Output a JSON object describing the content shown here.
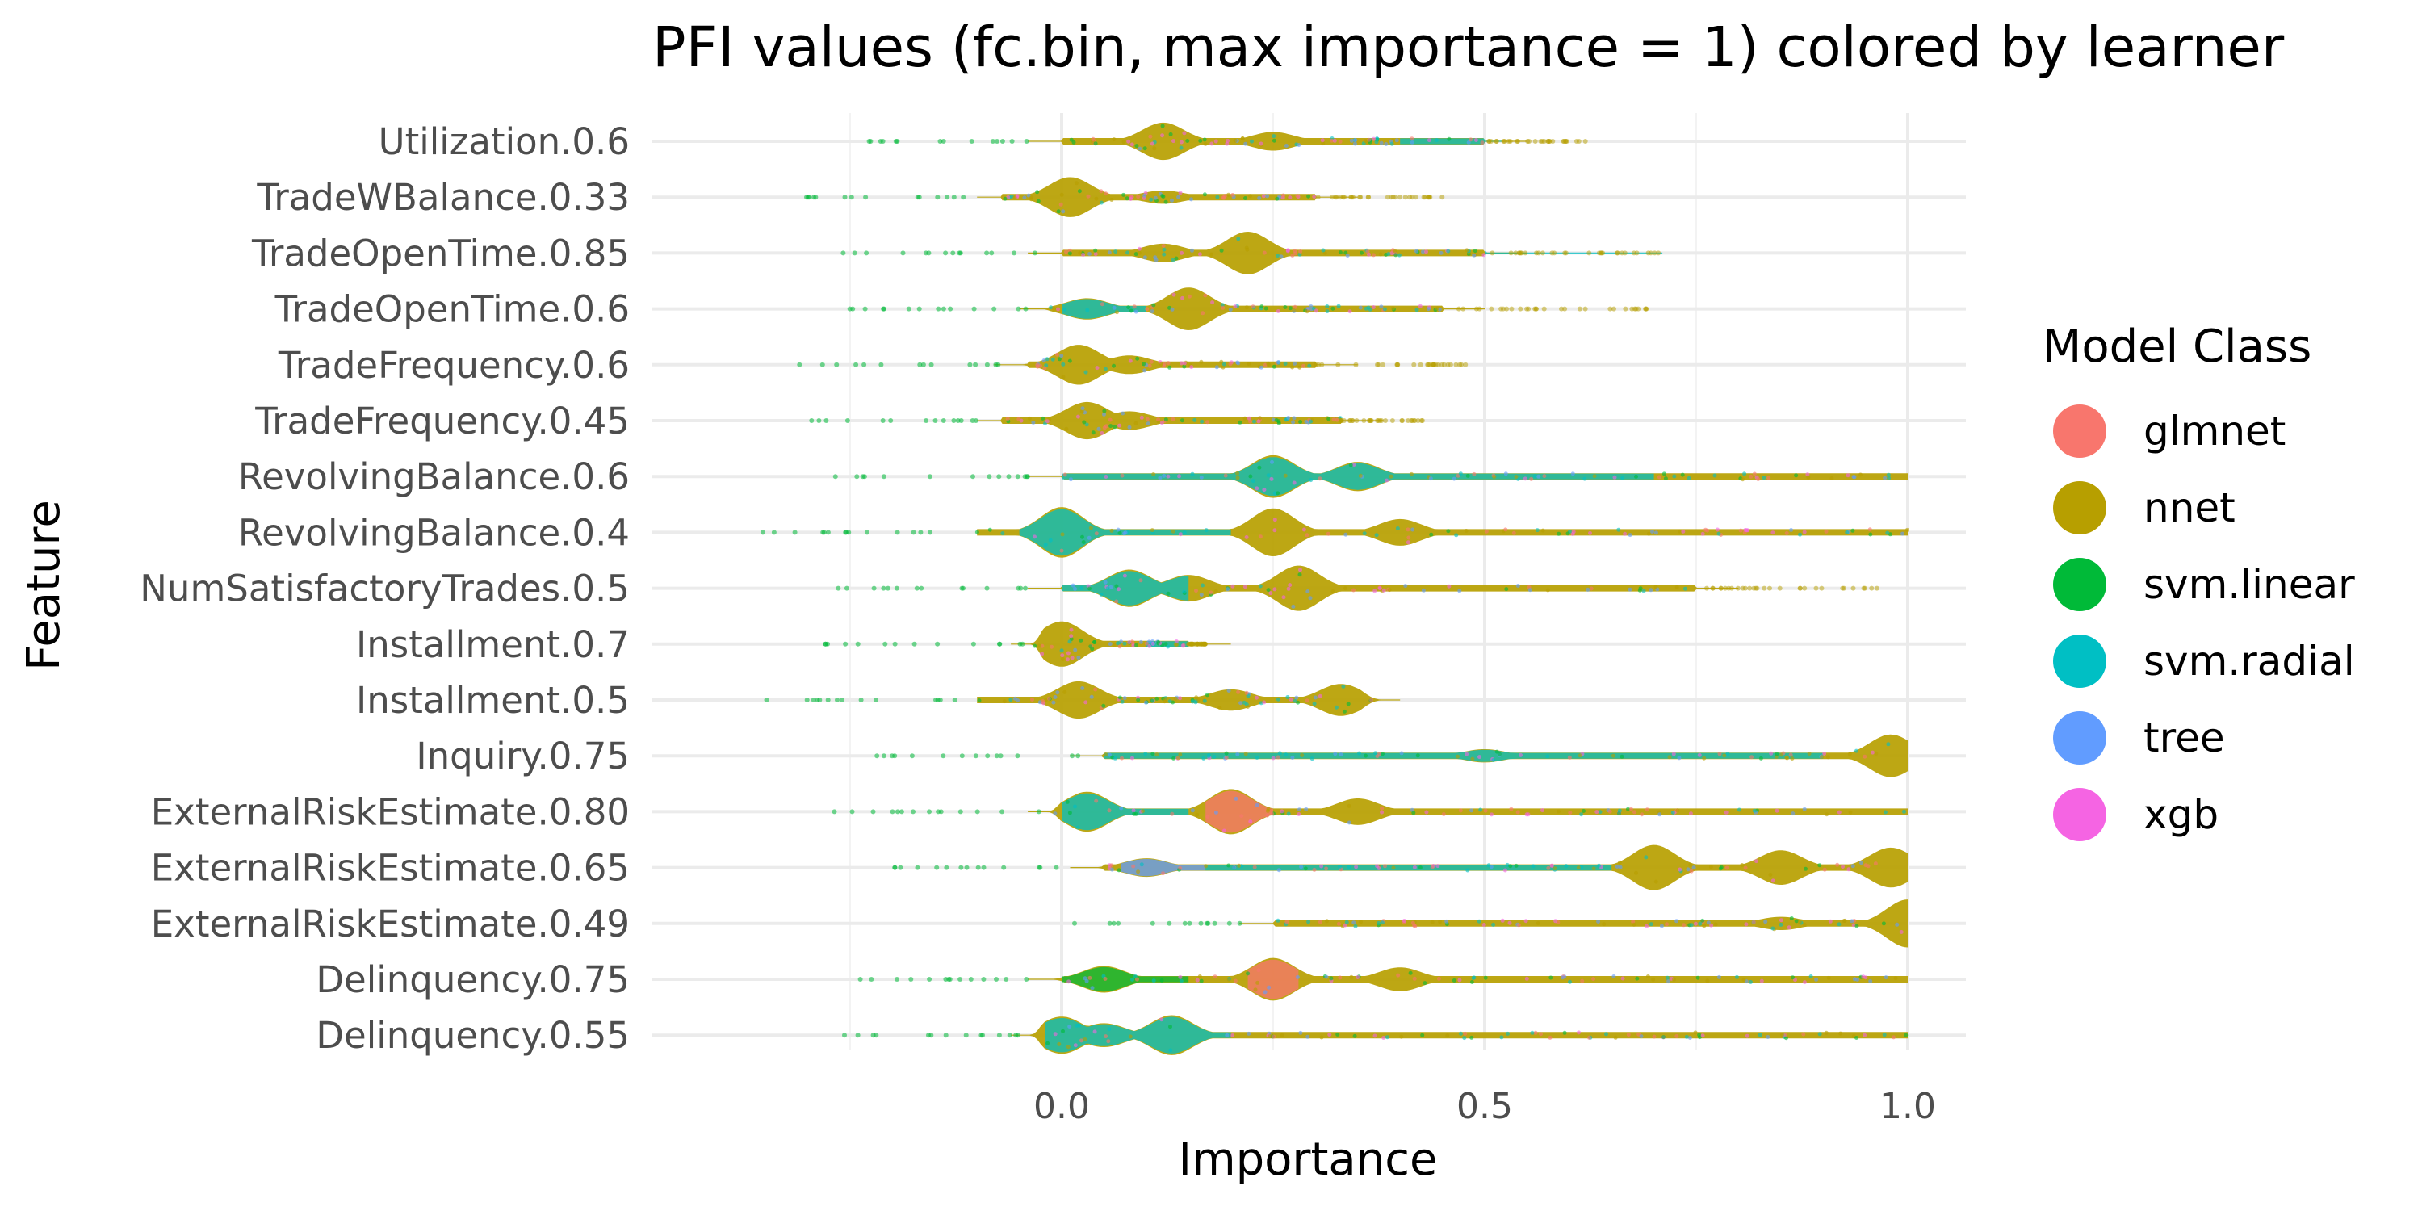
{
  "chart_data": {
    "type": "scatter",
    "title": "PFI values (fc.bin, max importance = 1) colored by learner",
    "xlabel": "Importance",
    "ylabel": "Feature",
    "xlim": [
      -0.5,
      1.07
    ],
    "x_ticks": [
      "0.0",
      "0.5",
      "1.0"
    ],
    "grid": true,
    "legend_position": "right",
    "legend_title": "Model Class",
    "series": [
      {
        "name": "glmnet",
        "color": "#F8766D"
      },
      {
        "name": "nnet",
        "color": "#B79F00"
      },
      {
        "name": "svm.linear",
        "color": "#00BA38"
      },
      {
        "name": "svm.radial",
        "color": "#00BFC4"
      },
      {
        "name": "tree",
        "color": "#619CFF"
      },
      {
        "name": "xgb",
        "color": "#F564E3"
      }
    ],
    "features": [
      {
        "label": "Utilization.0.6",
        "bumps": [
          {
            "x": 0.12,
            "h": 0.7
          },
          {
            "x": 0.25,
            "h": 0.35
          }
        ],
        "min": 0.0,
        "main_end": 0.5,
        "tail_end": 0.62,
        "overlays": [
          {
            "series": "svm.radial",
            "from": 0.4,
            "to": 0.52
          }
        ]
      },
      {
        "label": "TradeWBalance.0.33",
        "bumps": [
          {
            "x": 0.01,
            "h": 0.75
          },
          {
            "x": 0.12,
            "h": 0.25
          }
        ],
        "min": -0.07,
        "main_end": 0.3,
        "tail_end": 0.45
      },
      {
        "label": "TradeOpenTime.0.85",
        "bumps": [
          {
            "x": 0.22,
            "h": 0.8
          },
          {
            "x": 0.12,
            "h": 0.35
          }
        ],
        "min": 0.0,
        "main_end": 0.5,
        "tail_end": 0.71,
        "overlays": [
          {
            "series": "svm.radial",
            "from": 0.5,
            "to": 0.71
          }
        ]
      },
      {
        "label": "TradeOpenTime.0.6",
        "bumps": [
          {
            "x": 0.15,
            "h": 0.8
          },
          {
            "x": 0.03,
            "h": 0.4
          }
        ],
        "min": -0.01,
        "main_end": 0.45,
        "tail_end": 0.7,
        "overlays": [
          {
            "series": "svm.radial",
            "from": 0.0,
            "to": 0.1
          }
        ]
      },
      {
        "label": "TradeFrequency.0.6",
        "bumps": [
          {
            "x": 0.02,
            "h": 0.75
          },
          {
            "x": 0.08,
            "h": 0.35
          }
        ],
        "min": -0.04,
        "main_end": 0.3,
        "tail_end": 0.5
      },
      {
        "label": "TradeFrequency.0.45",
        "bumps": [
          {
            "x": 0.03,
            "h": 0.7
          },
          {
            "x": 0.08,
            "h": 0.35
          }
        ],
        "min": -0.07,
        "main_end": 0.33,
        "tail_end": 0.43
      },
      {
        "label": "RevolvingBalance.0.6",
        "bumps": [
          {
            "x": 0.25,
            "h": 0.8
          },
          {
            "x": 0.35,
            "h": 0.55
          }
        ],
        "min": 0.0,
        "main_end": 1.0,
        "tail_end": 1.0,
        "overlays": [
          {
            "series": "svm.radial",
            "from": 0.0,
            "to": 0.7
          }
        ]
      },
      {
        "label": "RevolvingBalance.0.4",
        "bumps": [
          {
            "x": 0.0,
            "h": 0.95
          },
          {
            "x": 0.25,
            "h": 0.9
          },
          {
            "x": 0.4,
            "h": 0.5
          }
        ],
        "min": -0.1,
        "main_end": 1.0,
        "tail_end": 1.0,
        "overlays": [
          {
            "series": "svm.radial",
            "from": -0.05,
            "to": 0.2
          }
        ]
      },
      {
        "label": "NumSatisfactoryTrades.0.5",
        "bumps": [
          {
            "x": 0.28,
            "h": 0.85
          },
          {
            "x": 0.08,
            "h": 0.7
          },
          {
            "x": 0.15,
            "h": 0.5
          }
        ],
        "min": 0.0,
        "main_end": 0.75,
        "tail_end": 0.97,
        "overlays": [
          {
            "series": "svm.radial",
            "from": 0.0,
            "to": 0.15
          }
        ]
      },
      {
        "label": "Installment.0.7",
        "bumps": [
          {
            "x": 0.0,
            "h": 0.85
          }
        ],
        "min": -0.02,
        "main_end": 0.15,
        "tail_end": 0.17,
        "overlays": [
          {
            "series": "svm.radial",
            "from": 0.1,
            "to": 0.17
          }
        ]
      },
      {
        "label": "Installment.0.5",
        "bumps": [
          {
            "x": 0.02,
            "h": 0.7
          },
          {
            "x": 0.33,
            "h": 0.6
          },
          {
            "x": 0.2,
            "h": 0.4
          }
        ],
        "min": -0.1,
        "main_end": 0.35,
        "tail_end": 0.35
      },
      {
        "label": "Inquiry.0.75",
        "bumps": [
          {
            "x": 0.98,
            "h": 0.8
          },
          {
            "x": 0.5,
            "h": 0.25
          }
        ],
        "min": 0.05,
        "main_end": 1.0,
        "tail_end": 1.0,
        "overlays": [
          {
            "series": "svm.radial",
            "from": 0.05,
            "to": 0.9
          }
        ]
      },
      {
        "label": "ExternalRiskEstimate.0.80",
        "bumps": [
          {
            "x": 0.03,
            "h": 0.75
          },
          {
            "x": 0.2,
            "h": 0.85
          },
          {
            "x": 0.35,
            "h": 0.5
          }
        ],
        "min": 0.0,
        "main_end": 1.0,
        "tail_end": 1.0,
        "overlays": [
          {
            "series": "svm.radial",
            "from": 0.0,
            "to": 0.15
          },
          {
            "series": "glmnet",
            "from": 0.17,
            "to": 0.25
          }
        ]
      },
      {
        "label": "ExternalRiskEstimate.0.65",
        "bumps": [
          {
            "x": 0.7,
            "h": 0.85
          },
          {
            "x": 0.85,
            "h": 0.65
          },
          {
            "x": 0.98,
            "h": 0.75
          },
          {
            "x": 0.1,
            "h": 0.35
          }
        ],
        "min": 0.05,
        "main_end": 1.0,
        "tail_end": 1.0,
        "overlays": [
          {
            "series": "tree",
            "from": 0.07,
            "to": 0.17
          },
          {
            "series": "svm.radial",
            "from": 0.17,
            "to": 0.65
          }
        ]
      },
      {
        "label": "ExternalRiskEstimate.0.49",
        "bumps": [
          {
            "x": 1.0,
            "h": 0.9
          },
          {
            "x": 0.85,
            "h": 0.25
          }
        ],
        "min": 0.25,
        "main_end": 1.0,
        "tail_end": 1.0
      },
      {
        "label": "Delinquency.0.75",
        "bumps": [
          {
            "x": 0.25,
            "h": 0.8
          },
          {
            "x": 0.05,
            "h": 0.5
          },
          {
            "x": 0.4,
            "h": 0.45
          }
        ],
        "min": 0.0,
        "main_end": 1.0,
        "tail_end": 1.0,
        "overlays": [
          {
            "series": "svm.linear",
            "from": 0.0,
            "to": 0.15
          },
          {
            "series": "glmnet",
            "from": 0.22,
            "to": 0.28
          }
        ]
      },
      {
        "label": "Delinquency.0.55",
        "bumps": [
          {
            "x": 0.0,
            "h": 0.7
          },
          {
            "x": 0.13,
            "h": 0.75
          },
          {
            "x": 0.05,
            "h": 0.45
          }
        ],
        "min": -0.02,
        "main_end": 1.0,
        "tail_end": 1.0,
        "overlays": [
          {
            "series": "svm.radial",
            "from": -0.02,
            "to": 0.2
          }
        ]
      }
    ]
  }
}
